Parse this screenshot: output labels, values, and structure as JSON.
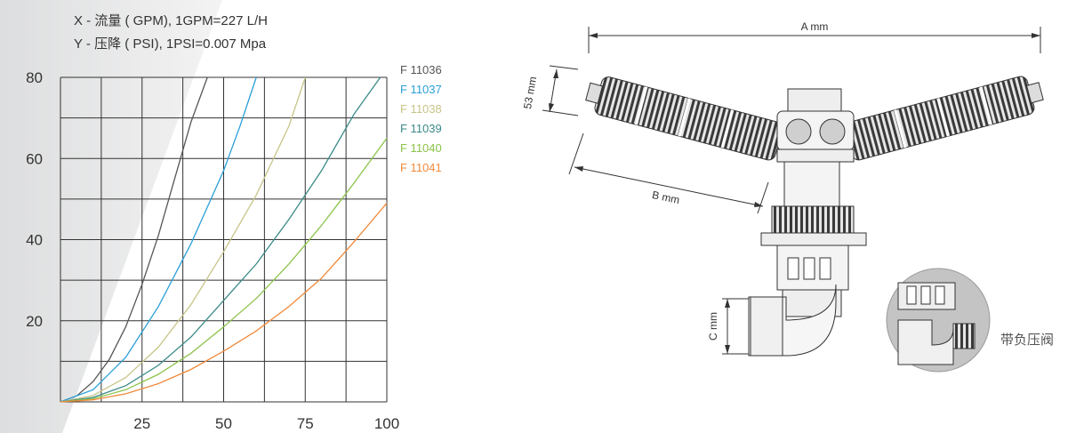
{
  "header": {
    "x_line": "X - 流量 ( GPM), 1GPM=227 L/H",
    "y_line": "Y - 压降 ( PSI), 1PSI=0.007 Mpa"
  },
  "chart_data": {
    "type": "line",
    "title": "",
    "xlabel": "X - 流量 ( GPM), 1GPM=227 L/H",
    "ylabel": "Y - 压降 ( PSI), 1PSI=0.007 Mpa",
    "xlim": [
      0,
      100
    ],
    "ylim": [
      0,
      80
    ],
    "x_ticks": [
      "25",
      "50",
      "75",
      "100"
    ],
    "y_ticks": [
      "20",
      "40",
      "60",
      "80"
    ],
    "grid": true,
    "legend_position": "top-right",
    "series": [
      {
        "name": "F 11036",
        "color": "#555555",
        "x": [
          0,
          5,
          10,
          15,
          20,
          25,
          30,
          35,
          40,
          45
        ],
        "y": [
          0,
          1.5,
          5,
          10.5,
          18.5,
          29,
          41,
          55,
          69,
          80
        ]
      },
      {
        "name": "F 11037",
        "color": "#2a9fd8",
        "x": [
          0,
          10,
          20,
          30,
          40,
          50,
          55,
          60
        ],
        "y": [
          0,
          3,
          11,
          23.5,
          39,
          57,
          68,
          80
        ]
      },
      {
        "name": "F 11038",
        "color": "#c8c489",
        "x": [
          0,
          10,
          20,
          30,
          40,
          50,
          60,
          70,
          75
        ],
        "y": [
          0,
          1.6,
          6,
          13.5,
          24,
          37,
          51,
          68,
          80
        ]
      },
      {
        "name": "F 11039",
        "color": "#3a8a88",
        "x": [
          0,
          10,
          20,
          30,
          40,
          50,
          60,
          70,
          80,
          90,
          98
        ],
        "y": [
          0,
          1.1,
          4,
          9,
          16,
          25,
          34,
          45,
          57,
          71,
          80
        ]
      },
      {
        "name": "F 11040",
        "color": "#8cc34a",
        "x": [
          0,
          10,
          20,
          30,
          40,
          50,
          60,
          70,
          80,
          90,
          100
        ],
        "y": [
          0,
          0.8,
          3,
          6.8,
          12,
          18.5,
          25.5,
          34,
          43.5,
          54,
          65
        ]
      },
      {
        "name": "F 11041",
        "color": "#f08a3c",
        "x": [
          0,
          10,
          20,
          30,
          40,
          50,
          60,
          70,
          80,
          90,
          100
        ],
        "y": [
          0,
          0.5,
          2,
          4.5,
          8,
          12.5,
          17.5,
          23.5,
          30.5,
          39.5,
          49
        ]
      }
    ]
  },
  "diagram": {
    "dim_a": "A mm",
    "dim_b": "B mm",
    "dim_53": "53 mm",
    "dim_c": "C mm",
    "valve_caption": "带负压阀"
  }
}
